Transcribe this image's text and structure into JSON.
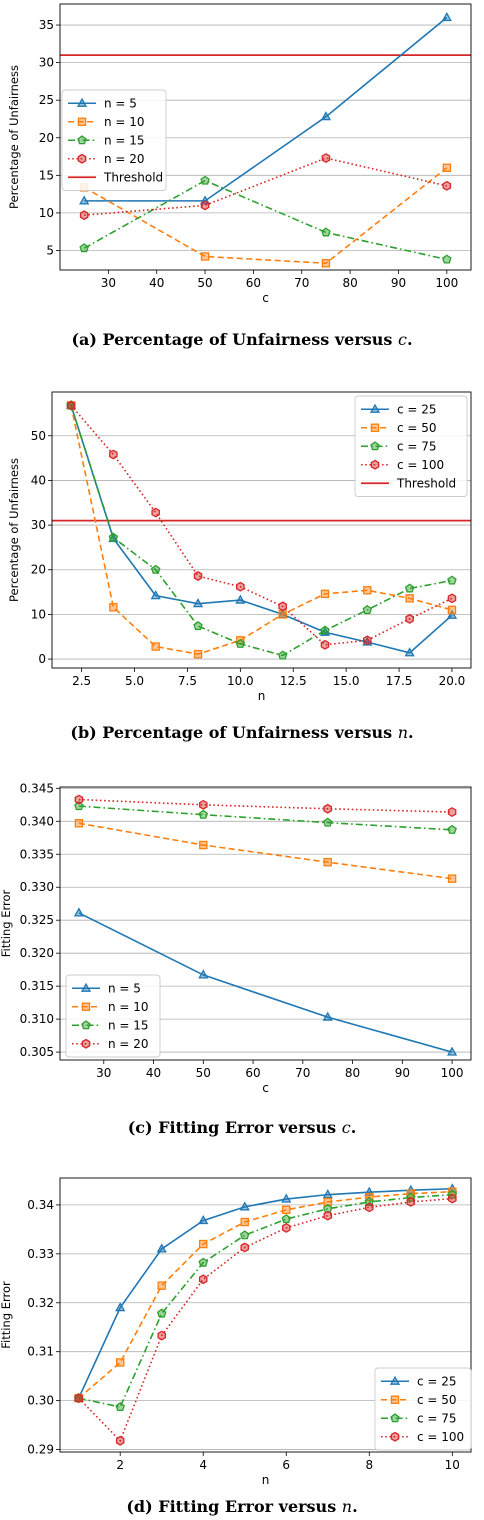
{
  "chart_data": [
    {
      "type": "line",
      "xlabel": "c",
      "ylabel": "Percentage of Unfairness",
      "xlim": [
        20,
        105
      ],
      "ylim": [
        2.4,
        37.8
      ],
      "xticks": [
        30,
        40,
        50,
        60,
        70,
        80,
        90,
        100
      ],
      "yticks": [
        5,
        10,
        15,
        20,
        25,
        30,
        35
      ],
      "grid": true,
      "legend": "center-left",
      "caption_prefix": "(a) Percentage of Unfairness versus ",
      "caption_var": "c",
      "caption_suffix": ".",
      "threshold": {
        "name": "Threshold",
        "value": 31,
        "color": "#d62728"
      },
      "series": [
        {
          "name": "n = 5",
          "color": "#1f77b4",
          "style": "solid",
          "marker": "triangle",
          "x": [
            25,
            50,
            75,
            100
          ],
          "y": [
            11.6,
            11.6,
            22.8,
            36.0
          ]
        },
        {
          "name": "n = 10",
          "color": "#ff7f0e",
          "style": "dashed",
          "marker": "square",
          "x": [
            25,
            50,
            75,
            100
          ],
          "y": [
            13.4,
            4.2,
            3.3,
            16.0
          ]
        },
        {
          "name": "n = 15",
          "color": "#2ca02c",
          "style": "dashdot",
          "marker": "pentagon",
          "x": [
            25,
            50,
            75,
            100
          ],
          "y": [
            5.3,
            14.3,
            7.4,
            3.8
          ]
        },
        {
          "name": "n = 20",
          "color": "#d62728",
          "style": "dotted",
          "marker": "hexagon",
          "x": [
            25,
            50,
            75,
            100
          ],
          "y": [
            9.7,
            11.0,
            17.3,
            13.6
          ]
        }
      ]
    },
    {
      "type": "line",
      "xlabel": "n",
      "ylabel": "Percentage of Unfairness",
      "xlim": [
        1.1,
        20.9
      ],
      "ylim": [
        -2.0,
        59.8
      ],
      "xticks": [
        2.5,
        5.0,
        7.5,
        10.0,
        12.5,
        15.0,
        17.5,
        20.0
      ],
      "yticks": [
        0,
        10,
        20,
        30,
        40,
        50
      ],
      "grid": true,
      "legend": "upper-right",
      "caption_prefix": "(b) Percentage of Unfairness versus ",
      "caption_var": "n",
      "caption_suffix": ".",
      "threshold": {
        "name": "Threshold",
        "value": 31,
        "color": "#d62728"
      },
      "series": [
        {
          "name": "c = 25",
          "color": "#1f77b4",
          "style": "solid",
          "marker": "triangle",
          "x": [
            2,
            4,
            6,
            8,
            10,
            12,
            14,
            16,
            18,
            20
          ],
          "y": [
            56.8,
            27.0,
            14.2,
            12.4,
            13.2,
            10.0,
            6.0,
            3.8,
            1.4,
            9.8
          ]
        },
        {
          "name": "c = 50",
          "color": "#ff7f0e",
          "style": "dashed",
          "marker": "square",
          "x": [
            2,
            4,
            6,
            8,
            10,
            12,
            14,
            16,
            18,
            20
          ],
          "y": [
            56.8,
            11.6,
            2.8,
            1.1,
            4.2,
            10.0,
            14.6,
            15.4,
            13.6,
            11.0
          ]
        },
        {
          "name": "c = 75",
          "color": "#2ca02c",
          "style": "dashdot",
          "marker": "pentagon",
          "x": [
            2,
            4,
            6,
            8,
            10,
            12,
            14,
            16,
            18,
            20
          ],
          "y": [
            56.8,
            27.2,
            20.0,
            7.4,
            3.4,
            0.8,
            6.4,
            11.0,
            15.8,
            17.6
          ]
        },
        {
          "name": "c = 100",
          "color": "#d62728",
          "style": "dotted",
          "marker": "hexagon",
          "x": [
            2,
            4,
            6,
            8,
            10,
            12,
            14,
            16,
            18,
            20
          ],
          "y": [
            56.8,
            45.8,
            32.8,
            18.6,
            16.2,
            11.8,
            3.2,
            4.2,
            9.0,
            13.6
          ]
        }
      ]
    },
    {
      "type": "line",
      "xlabel": "c",
      "ylabel": "Fitting Error",
      "xlim": [
        21.2,
        103.8
      ],
      "ylim": [
        0.3038,
        0.3452
      ],
      "xticks": [
        30,
        40,
        50,
        60,
        70,
        80,
        90,
        100
      ],
      "yticks": [
        0.305,
        0.31,
        0.315,
        0.32,
        0.325,
        0.33,
        0.335,
        0.34,
        0.345
      ],
      "ytick_decimals": 3,
      "grid": true,
      "legend": "lower-left",
      "caption_prefix": "(c) Fitting Error versus ",
      "caption_var": "c",
      "caption_suffix": ".",
      "series": [
        {
          "name": "n = 5",
          "color": "#1f77b4",
          "style": "solid",
          "marker": "triangle",
          "x": [
            25,
            50,
            75,
            100
          ],
          "y": [
            0.3261,
            0.3167,
            0.3103,
            0.305
          ]
        },
        {
          "name": "n = 10",
          "color": "#ff7f0e",
          "style": "dashed",
          "marker": "square",
          "x": [
            25,
            50,
            75,
            100
          ],
          "y": [
            0.3397,
            0.3364,
            0.3338,
            0.3313
          ]
        },
        {
          "name": "n = 15",
          "color": "#2ca02c",
          "style": "dashdot",
          "marker": "pentagon",
          "x": [
            25,
            50,
            75,
            100
          ],
          "y": [
            0.3423,
            0.341,
            0.3398,
            0.3387
          ]
        },
        {
          "name": "n = 20",
          "color": "#d62728",
          "style": "dotted",
          "marker": "hexagon",
          "x": [
            25,
            50,
            75,
            100
          ],
          "y": [
            0.3433,
            0.3425,
            0.3419,
            0.3414
          ]
        }
      ]
    },
    {
      "type": "line",
      "xlabel": "n",
      "ylabel": "Fitting Error",
      "xlim": [
        0.55,
        10.45
      ],
      "ylim": [
        0.2895,
        0.3455
      ],
      "xticks": [
        2,
        4,
        6,
        8,
        10
      ],
      "yticks": [
        0.29,
        0.3,
        0.31,
        0.32,
        0.33,
        0.34
      ],
      "ytick_decimals": 2,
      "grid": true,
      "legend": "lower-right",
      "caption_prefix": "(d) Fitting Error versus ",
      "caption_var": "n",
      "caption_suffix": ".",
      "series": [
        {
          "name": "c = 25",
          "color": "#1f77b4",
          "style": "solid",
          "marker": "triangle",
          "x": [
            1,
            2,
            3,
            4,
            5,
            6,
            7,
            8,
            9,
            10
          ],
          "y": [
            0.3005,
            0.319,
            0.331,
            0.3368,
            0.3396,
            0.3412,
            0.3421,
            0.3426,
            0.343,
            0.3433
          ]
        },
        {
          "name": "c = 50",
          "color": "#ff7f0e",
          "style": "dashed",
          "marker": "square",
          "x": [
            1,
            2,
            3,
            4,
            5,
            6,
            7,
            8,
            9,
            10
          ],
          "y": [
            0.3005,
            0.3078,
            0.3235,
            0.332,
            0.3365,
            0.339,
            0.3406,
            0.3416,
            0.3423,
            0.3427
          ]
        },
        {
          "name": "c = 75",
          "color": "#2ca02c",
          "style": "dashdot",
          "marker": "pentagon",
          "x": [
            1,
            2,
            3,
            4,
            5,
            6,
            7,
            8,
            9,
            10
          ],
          "y": [
            0.3005,
            0.2987,
            0.3178,
            0.3282,
            0.3338,
            0.3371,
            0.3392,
            0.3406,
            0.3415,
            0.3421
          ]
        },
        {
          "name": "c = 100",
          "color": "#d62728",
          "style": "dotted",
          "marker": "hexagon",
          "x": [
            1,
            2,
            3,
            4,
            5,
            6,
            7,
            8,
            9,
            10
          ],
          "y": [
            0.3005,
            0.2918,
            0.3133,
            0.3248,
            0.3313,
            0.3353,
            0.3378,
            0.3395,
            0.3406,
            0.3413
          ]
        }
      ]
    }
  ]
}
